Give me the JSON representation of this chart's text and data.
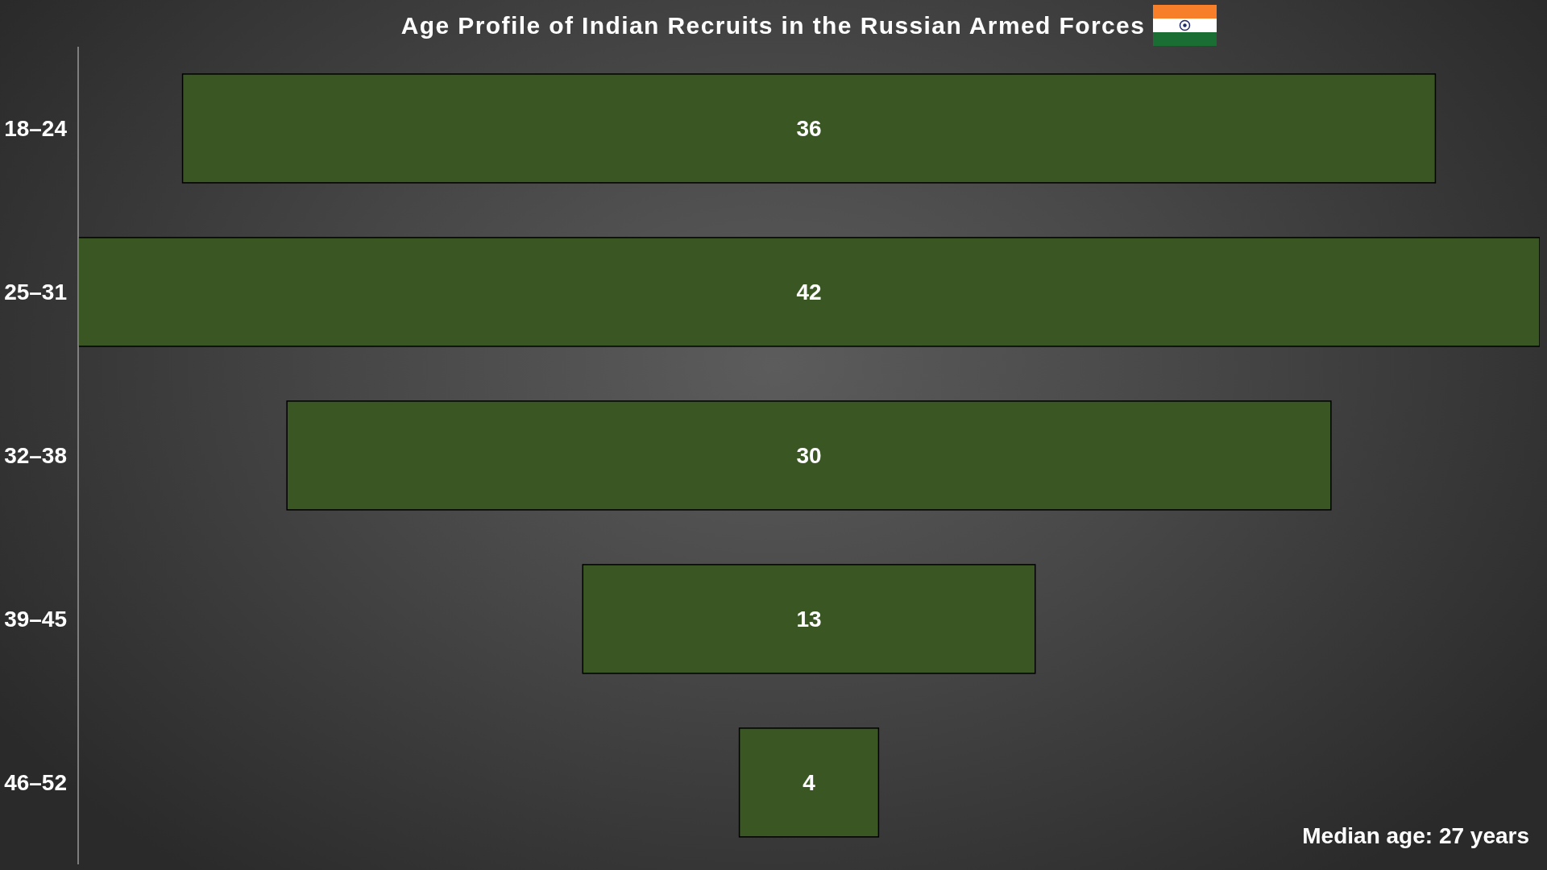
{
  "chart_data": {
    "type": "other",
    "title": "Age Profile of Indian Recruits in the Russian Armed Forces",
    "categories": [
      "18–24",
      "25–31",
      "32–38",
      "39–45",
      "46–52"
    ],
    "values": [
      36,
      42,
      30,
      13,
      4
    ],
    "color": "#3a5723",
    "data_labels": true,
    "annotations": [
      "Median age: 27 years"
    ]
  }
}
